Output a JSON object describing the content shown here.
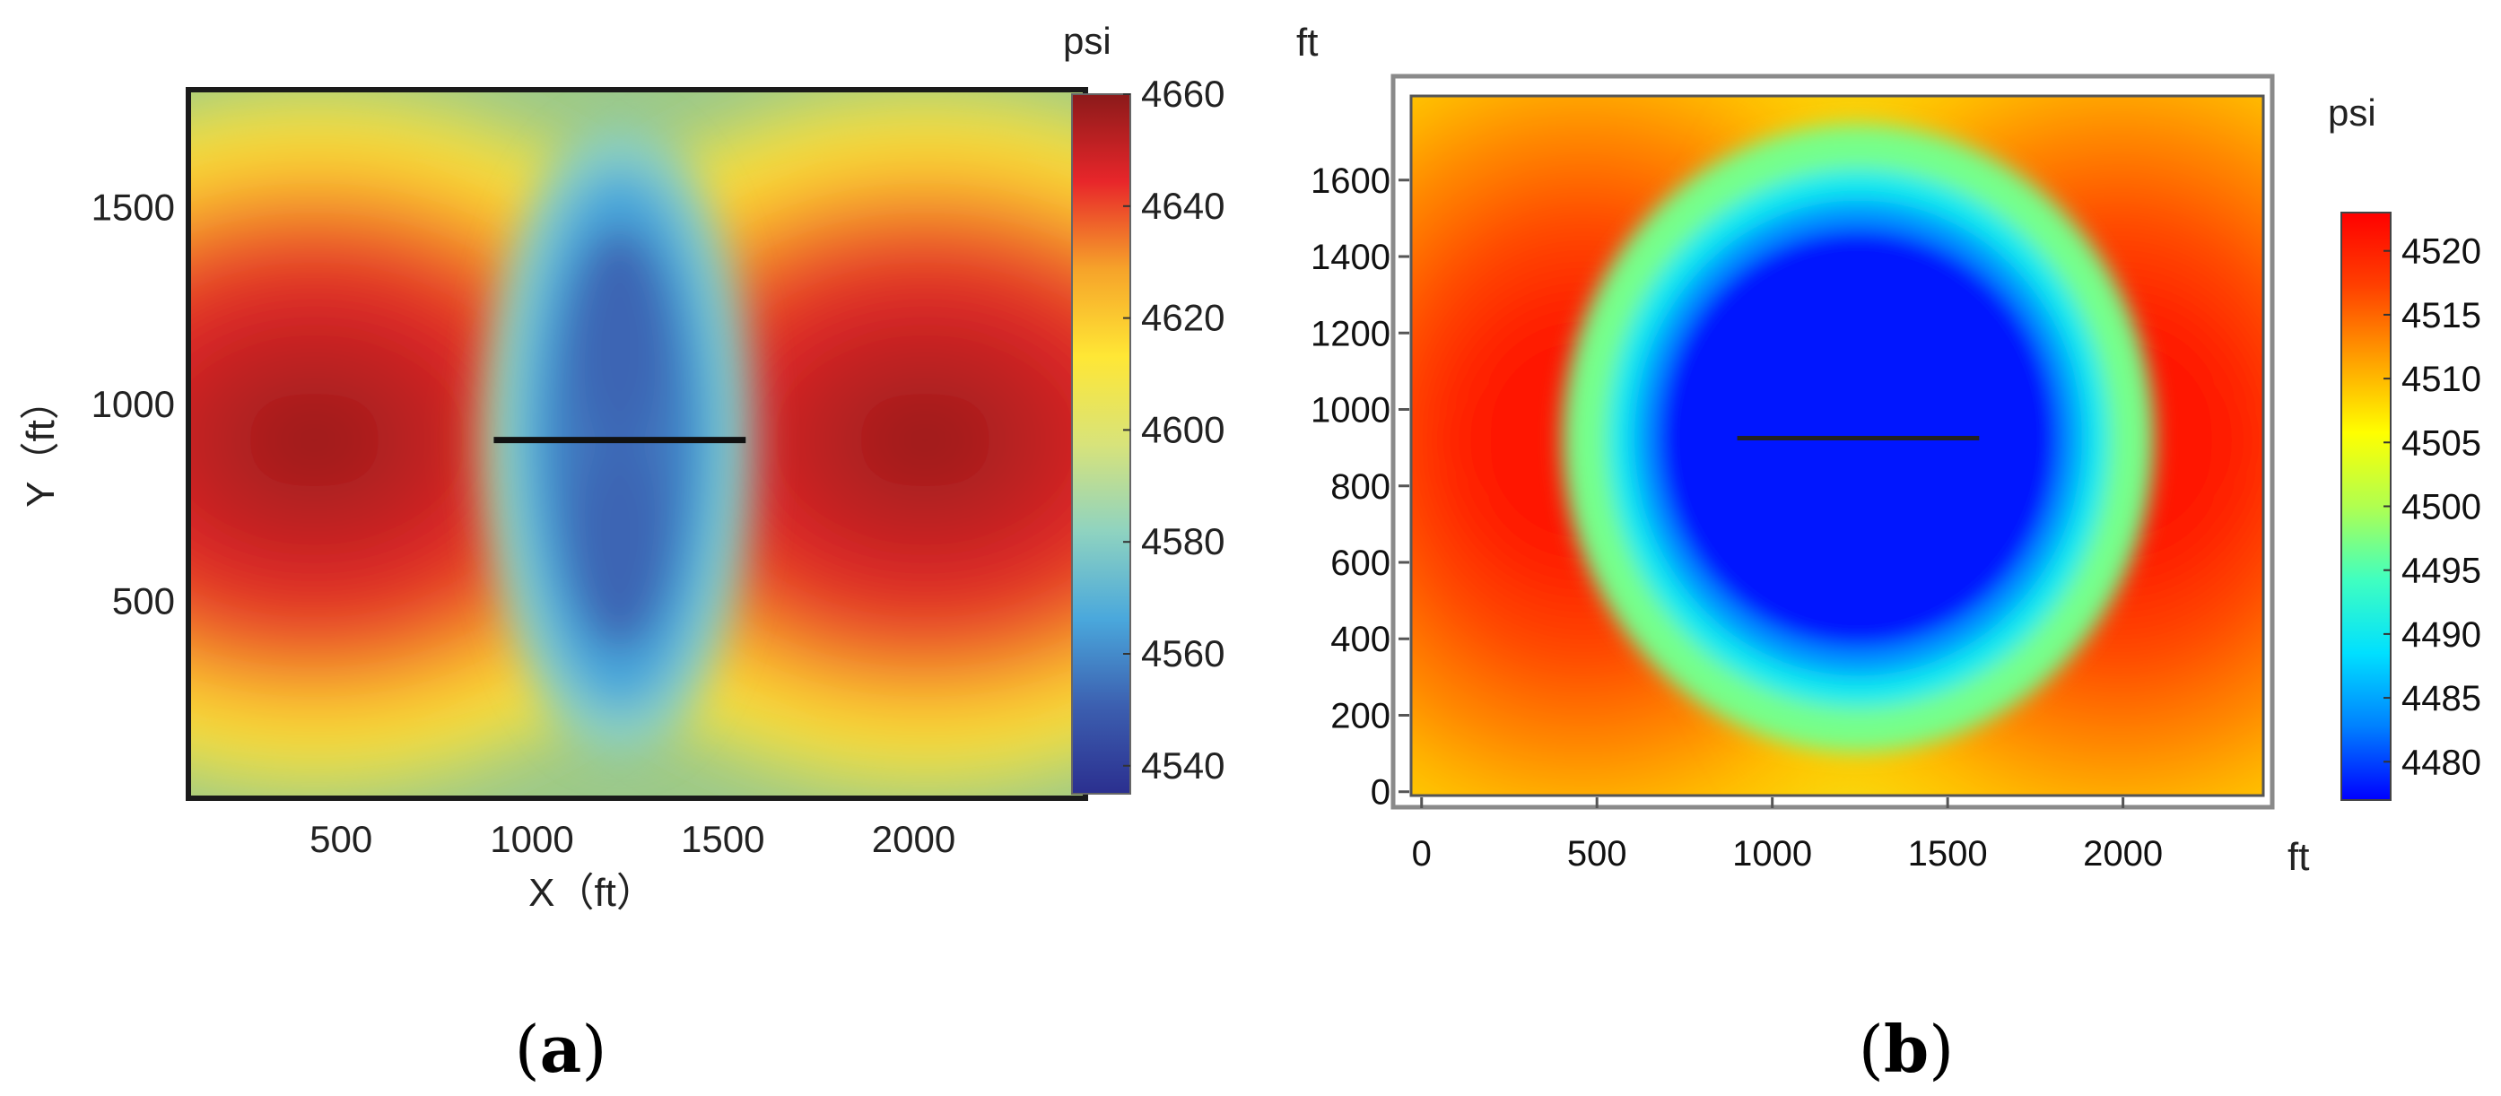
{
  "chart_data": [
    {
      "type": "heatmap",
      "panel": "a",
      "caption_open": "(",
      "caption_letter": "a",
      "caption_close": ")",
      "xlabel": "X（ft）",
      "ylabel": "Y（ft）",
      "colorbar_unit": "psi",
      "xlim": [
        100,
        2450
      ],
      "ylim": [
        0,
        1800
      ],
      "x_ticks": [
        500,
        1000,
        1500,
        2000
      ],
      "y_ticks": [
        500,
        1000,
        1500
      ],
      "clim": [
        4535,
        4660
      ],
      "colorbar_ticks": [
        4540,
        4560,
        4580,
        4600,
        4620,
        4640,
        4660
      ],
      "colormap": [
        "#2b2f8f",
        "#3c5fb0",
        "#4aa8dc",
        "#8fd3c0",
        "#d8e37a",
        "#ffe735",
        "#f6a32a",
        "#e8262a",
        "#8b1a1a"
      ],
      "field": {
        "background_psi": 4598,
        "well": {
          "x_start": 900,
          "x_end": 1560,
          "y": 910
        },
        "low_pressure_zone_psi": 4550,
        "high_pressure_centers": [
          {
            "x": 430,
            "y": 910,
            "psi": 4655
          },
          {
            "x": 2030,
            "y": 910,
            "psi": 4655
          }
        ]
      }
    },
    {
      "type": "heatmap",
      "panel": "b",
      "caption_open": "(",
      "caption_letter": "b",
      "caption_close": ")",
      "xlabel": "ft",
      "ylabel": "ft",
      "colorbar_unit": "psi",
      "xlim": [
        -30,
        2400
      ],
      "ylim": [
        -10,
        1820
      ],
      "x_ticks": [
        0,
        500,
        1000,
        1500,
        2000
      ],
      "y_ticks": [
        0,
        200,
        400,
        600,
        800,
        1000,
        1200,
        1400,
        1600
      ],
      "clim": [
        4477,
        4523
      ],
      "colorbar_ticks": [
        4480,
        4485,
        4490,
        4495,
        4500,
        4505,
        4510,
        4515,
        4520
      ],
      "colormap": [
        "#0000ff",
        "#0080ff",
        "#00e0ff",
        "#40ffc0",
        "#b0ff50",
        "#ffff00",
        "#ffa000",
        "#ff4000",
        "#ff0000"
      ],
      "field": {
        "background_psi": 4505,
        "well": {
          "x_start": 900,
          "x_end": 1590,
          "y": 925
        },
        "low_pressure_zone_psi": 4478,
        "high_pressure_centers": [
          {
            "x": 460,
            "y": 920,
            "psi": 4522
          },
          {
            "x": 1990,
            "y": 920,
            "psi": 4522
          }
        ]
      }
    }
  ]
}
